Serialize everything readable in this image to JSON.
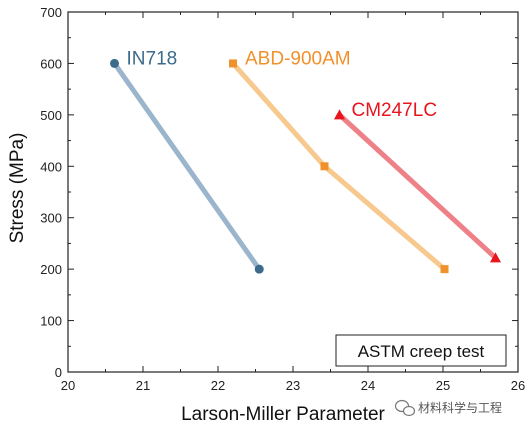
{
  "chart_data": {
    "type": "line",
    "xlabel": "Larson-Miller Parameter",
    "ylabel": "Stress (MPa)",
    "xlim": [
      20,
      26
    ],
    "ylim": [
      0,
      700
    ],
    "xticks": [
      20,
      21,
      22,
      23,
      24,
      25,
      26
    ],
    "yticks": [
      0,
      100,
      200,
      300,
      400,
      500,
      600,
      700
    ],
    "grid": false,
    "legend": "inline labels next to each series",
    "annotation": "ASTM creep test",
    "series": [
      {
        "name": "IN718",
        "marker": "circle",
        "marker_color": "#3d6b8c",
        "line_color": "#9bb5cc",
        "label_color": "#3d6b8c",
        "points": [
          {
            "x": 20.62,
            "y": 600
          },
          {
            "x": 22.55,
            "y": 200
          }
        ]
      },
      {
        "name": "ABD-900AM",
        "marker": "square",
        "marker_color": "#f0912b",
        "line_color": "#f7c98e",
        "label_color": "#f0912b",
        "points": [
          {
            "x": 22.2,
            "y": 600
          },
          {
            "x": 23.42,
            "y": 400
          },
          {
            "x": 25.02,
            "y": 200
          }
        ]
      },
      {
        "name": "CM247LC",
        "marker": "triangle",
        "marker_color": "#e8141e",
        "line_color": "#ee8088",
        "label_color": "#e8141e",
        "points": [
          {
            "x": 23.62,
            "y": 500
          },
          {
            "x": 25.7,
            "y": 222
          }
        ]
      }
    ]
  },
  "watermark": {
    "text": "材料科学与工程",
    "icon": "wechat-icon"
  }
}
